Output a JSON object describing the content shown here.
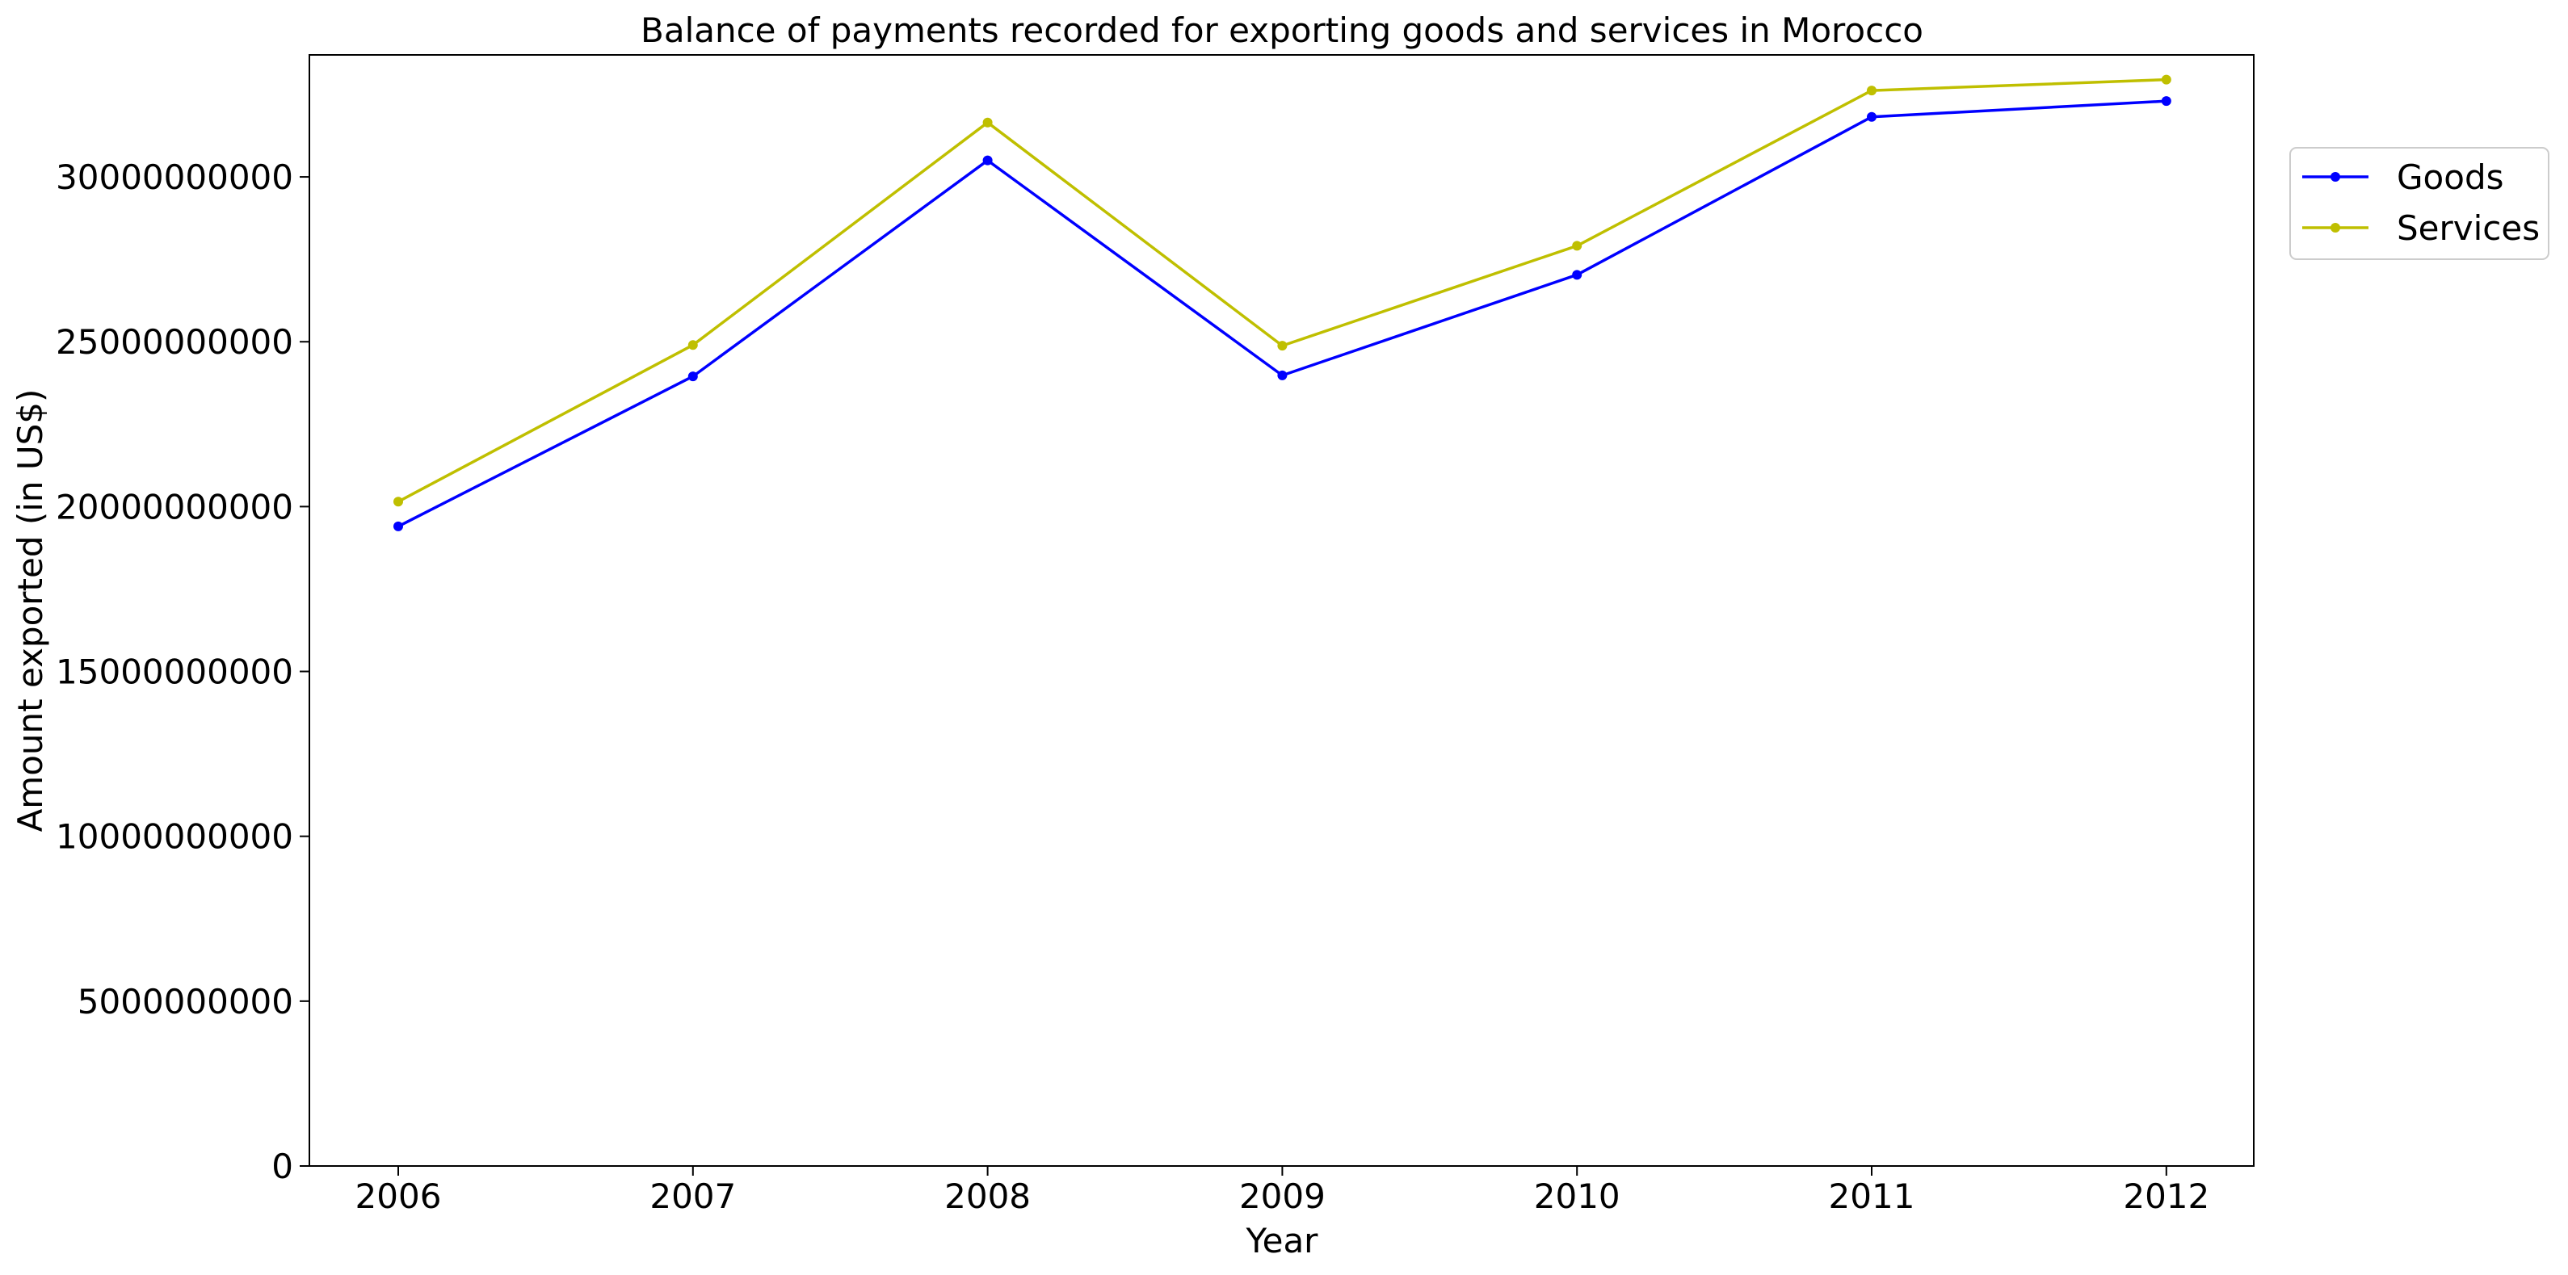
{
  "chart_data": {
    "type": "line",
    "title": "Balance of payments recorded for exporting goods and services in Morocco",
    "xlabel": "Year",
    "ylabel": "Amount exported (in US$)",
    "x": [
      "2006",
      "2007",
      "2008",
      "2009",
      "2010",
      "2011",
      "2012"
    ],
    "ylim": [
      0,
      33700000000
    ],
    "yticks": [
      0,
      5000000000,
      10000000000,
      15000000000,
      20000000000,
      25000000000,
      30000000000
    ],
    "ytick_labels": [
      "0",
      "5000000000",
      "10000000000",
      "15000000000",
      "20000000000",
      "25000000000",
      "30000000000"
    ],
    "grid": false,
    "legend_position": "right",
    "series": [
      {
        "name": "Goods",
        "color": "#0000ff",
        "values": [
          19400000000,
          23950000000,
          30500000000,
          23980000000,
          27030000000,
          31820000000,
          32300000000
        ]
      },
      {
        "name": "Services",
        "color": "#bfbf00",
        "values": [
          20150000000,
          24900000000,
          31650000000,
          24880000000,
          27910000000,
          32620000000,
          32950000000
        ]
      }
    ]
  }
}
